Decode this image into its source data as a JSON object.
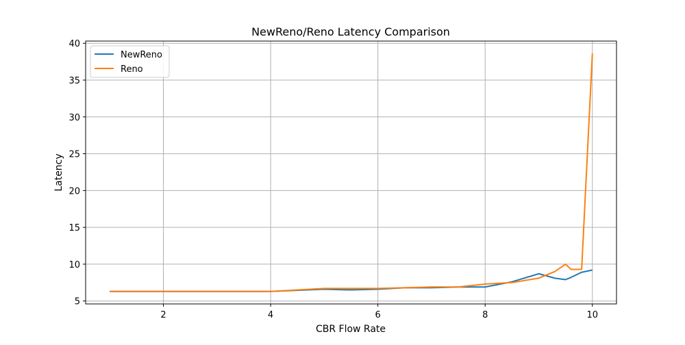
{
  "chart_data": {
    "type": "line",
    "title": "NewReno/Reno Latency Comparison",
    "xlabel": "CBR Flow Rate",
    "ylabel": "Latency",
    "xlim": [
      0.55,
      10.45
    ],
    "ylim": [
      4.6,
      40.3
    ],
    "xticks": [
      2,
      4,
      6,
      8,
      10
    ],
    "yticks": [
      5,
      10,
      15,
      20,
      25,
      30,
      35,
      40
    ],
    "grid": true,
    "legend_position": "top-left",
    "series": [
      {
        "name": "NewReno",
        "color": "#1f77b4",
        "x": [
          1,
          2,
          3,
          4,
          5,
          5.5,
          6,
          6.5,
          7,
          7.5,
          8,
          8.5,
          9,
          9.3,
          9.5,
          9.6,
          9.8,
          10
        ],
        "y": [
          6.3,
          6.3,
          6.3,
          6.3,
          6.6,
          6.5,
          6.6,
          6.8,
          6.8,
          6.9,
          6.9,
          7.6,
          8.7,
          8.1,
          7.9,
          8.2,
          8.9,
          9.2
        ]
      },
      {
        "name": "Reno",
        "color": "#ff7f0e",
        "x": [
          1,
          2,
          3,
          4,
          5,
          5.5,
          6,
          6.5,
          7,
          7.5,
          8,
          8.5,
          9,
          9.3,
          9.5,
          9.6,
          9.8,
          10
        ],
        "y": [
          6.3,
          6.3,
          6.3,
          6.3,
          6.7,
          6.7,
          6.7,
          6.8,
          6.9,
          6.9,
          7.3,
          7.5,
          8.1,
          9.0,
          10.0,
          9.3,
          9.3,
          38.6
        ]
      }
    ]
  }
}
